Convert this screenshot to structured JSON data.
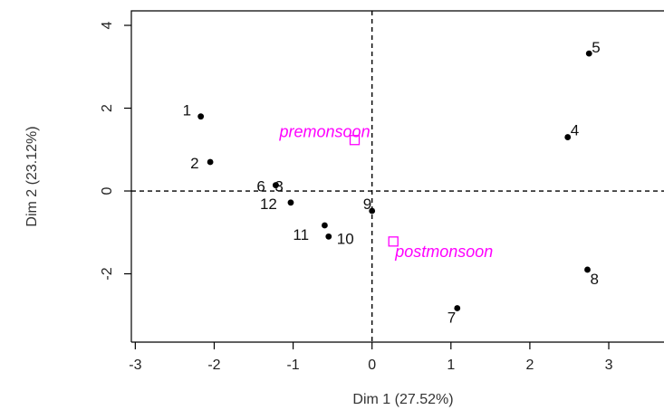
{
  "chart_data": {
    "type": "scatter",
    "xlabel": "Dim 1 (27.52%)",
    "ylabel": "Dim 2 (23.12%)",
    "xlim": [
      -3.05,
      3.7
    ],
    "ylim": [
      -3.65,
      4.35
    ],
    "xticks": [
      "-3",
      "-2",
      "-1",
      "0",
      "1",
      "2",
      "3"
    ],
    "yticks": [
      "-2",
      "0",
      "2",
      "4"
    ],
    "grid": false,
    "reference_lines": {
      "x": 0,
      "y": 0,
      "style": "dashed"
    },
    "colors": {
      "points": "#000000",
      "supplementary": "#ff00ff",
      "axis": "#000000"
    },
    "points": [
      {
        "label": "1",
        "x": -2.17,
        "y": 1.8
      },
      {
        "label": "2",
        "x": -2.05,
        "y": 0.7
      },
      {
        "label": "6",
        "x": -1.22,
        "y": 0.14
      },
      {
        "label": "3",
        "x": -1.22,
        "y": 0.14
      },
      {
        "label": "12",
        "x": -1.03,
        "y": -0.28
      },
      {
        "label": "11",
        "x": -0.6,
        "y": -0.83
      },
      {
        "label": "10",
        "x": -0.55,
        "y": -1.1
      },
      {
        "label": "9",
        "x": 0.0,
        "y": -0.48
      },
      {
        "label": "7",
        "x": 1.08,
        "y": -2.83
      },
      {
        "label": "4",
        "x": 2.48,
        "y": 1.3
      },
      {
        "label": "5",
        "x": 2.75,
        "y": 3.32
      },
      {
        "label": "8",
        "x": 2.73,
        "y": -1.9
      }
    ],
    "supplementary": [
      {
        "label": "premonsoon",
        "x": -0.22,
        "y": 1.23
      },
      {
        "label": "postmonsoon",
        "x": 0.27,
        "y": -1.22
      }
    ]
  }
}
